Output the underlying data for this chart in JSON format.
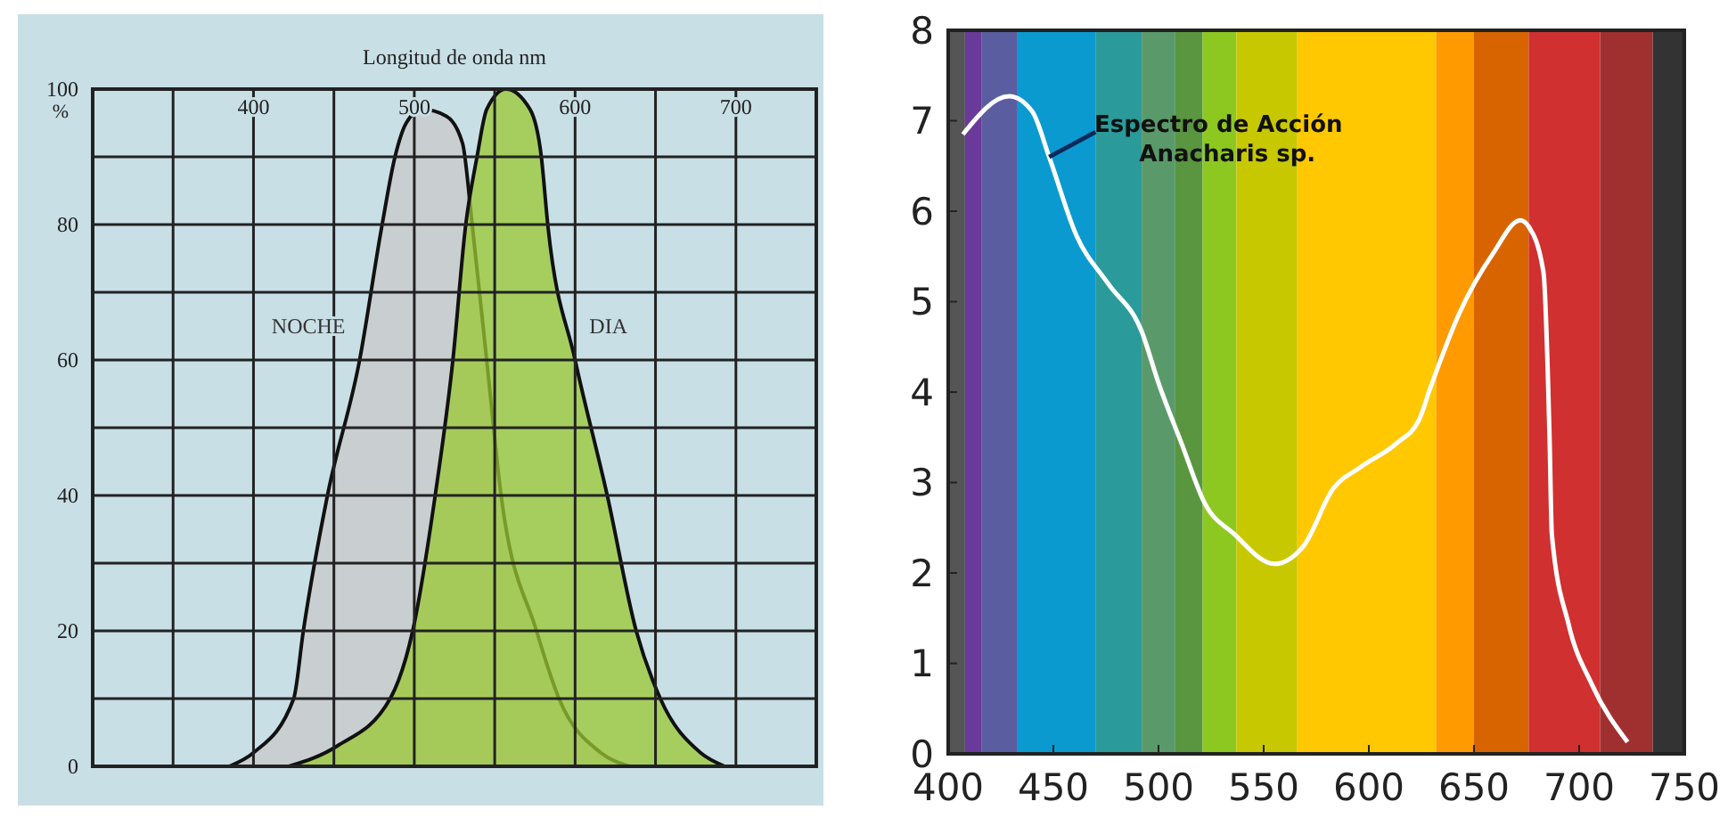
{
  "chart_data": [
    {
      "type": "area",
      "xlabel": "Longitud de onda nm",
      "ylabel": "%",
      "xlim": [
        300,
        750
      ],
      "ylim": [
        0,
        100
      ],
      "grid": true,
      "xticks": [
        {
          "value": 350,
          "label": null
        },
        400,
        {
          "value": 450,
          "label": null
        },
        500,
        {
          "value": 550,
          "label": null
        },
        600,
        {
          "value": 650,
          "label": null
        },
        700
      ],
      "yticks": [
        0,
        {
          "value": 10,
          "label": null
        },
        20,
        {
          "value": 30,
          "label": null
        },
        40,
        {
          "value": 50,
          "label": null
        },
        60,
        {
          "value": 70,
          "label": null
        },
        80,
        {
          "value": 90,
          "label": null
        },
        100
      ],
      "series": [
        {
          "name": "NOCHE",
          "color": "#c8c8c8",
          "x": [
            385,
            400,
            425,
            431,
            446,
            466,
            480,
            488,
            495,
            505,
            520,
            530,
            536,
            545,
            554,
            576,
            590,
            616,
            634
          ],
          "values": [
            0,
            2,
            10,
            20,
            40,
            60,
            80,
            90,
            95,
            97,
            96,
            92,
            80,
            60,
            40,
            20,
            10,
            2,
            0
          ]
        },
        {
          "name": "DIA",
          "color": "#9ac832",
          "x": [
            422,
            452,
            485,
            499,
            513,
            524,
            532,
            539,
            545,
            557,
            572,
            579,
            583,
            600,
            620,
            638,
            653,
            678,
            693
          ],
          "values": [
            0,
            3,
            10,
            20,
            40,
            60,
            80,
            90,
            97,
            100,
            97,
            90,
            80,
            60,
            40,
            20,
            10,
            2,
            0
          ]
        }
      ]
    },
    {
      "type": "line",
      "xlim": [
        400,
        750
      ],
      "ylim": [
        0,
        8
      ],
      "xticks": [
        400,
        450,
        500,
        550,
        600,
        650,
        700,
        750
      ],
      "yticks": [
        0,
        1,
        2,
        3,
        4,
        5,
        6,
        7,
        8
      ],
      "series": [
        {
          "color": "#ffffff",
          "x": [
            407,
            429,
            440,
            448,
            461,
            476,
            492,
            500,
            511,
            522,
            536,
            555,
            569,
            583,
            596,
            613,
            624,
            629,
            643,
            659,
            672,
            676,
            683,
            686,
            687,
            695,
            706,
            723
          ],
          "values": [
            6.85,
            7.27,
            7.1,
            6.6,
            5.73,
            5.2,
            4.67,
            4.1,
            3.43,
            2.77,
            2.43,
            2.1,
            2.3,
            2.93,
            3.17,
            3.43,
            3.7,
            4.03,
            4.87,
            5.53,
            5.9,
            5.83,
            5.33,
            3.43,
            2.43,
            1.43,
            0.77,
            0.13
          ]
        }
      ],
      "annotations": [
        {
          "text": "Espectro de Acción\nAnacharis sp.",
          "x": 448,
          "y": 6.6
        }
      ],
      "bands": [
        {
          "axis": "x",
          "from": 400,
          "to": 408,
          "color": "#555555"
        },
        {
          "axis": "x",
          "from": 408,
          "to": 416,
          "color": "#6a3a9a"
        },
        {
          "axis": "x",
          "from": 416,
          "to": 433,
          "color": "#5a5ea0"
        },
        {
          "axis": "x",
          "from": 433,
          "to": 470,
          "color": "#0a9ad0"
        },
        {
          "axis": "x",
          "from": 470,
          "to": 492,
          "color": "#2a9a9a"
        },
        {
          "axis": "x",
          "from": 492,
          "to": 508,
          "color": "#5a9a6a"
        },
        {
          "axis": "x",
          "from": 508,
          "to": 521,
          "color": "#5a9640"
        },
        {
          "axis": "x",
          "from": 521,
          "to": 537,
          "color": "#8cc820"
        },
        {
          "axis": "x",
          "from": 537,
          "to": 566,
          "color": "#c8c800"
        },
        {
          "axis": "x",
          "from": 566,
          "to": 632,
          "color": "#ffc800"
        },
        {
          "axis": "x",
          "from": 632,
          "to": 650,
          "color": "#ff9a00"
        },
        {
          "axis": "x",
          "from": 650,
          "to": 676,
          "color": "#d86400"
        },
        {
          "axis": "x",
          "from": 676,
          "to": 710,
          "color": "#d03030"
        },
        {
          "axis": "x",
          "from": 710,
          "to": 735,
          "color": "#a03030"
        },
        {
          "axis": "x",
          "from": 735,
          "to": 750,
          "color": "#333333"
        }
      ]
    }
  ]
}
